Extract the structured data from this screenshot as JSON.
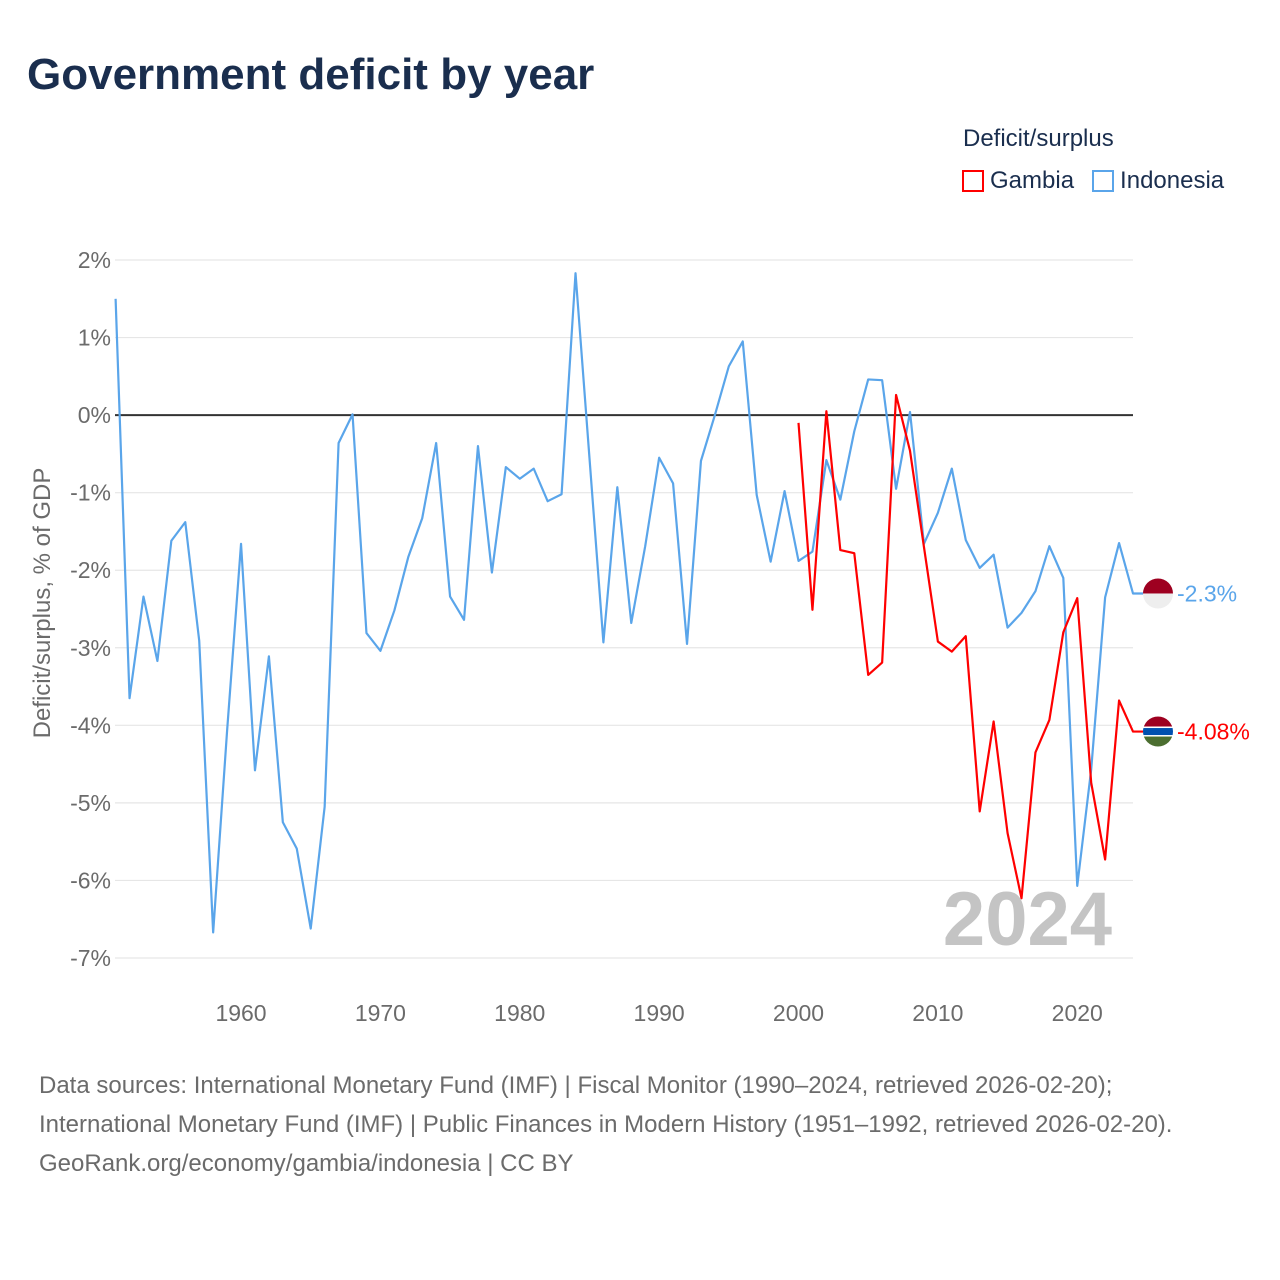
{
  "title": "Government deficit by year",
  "legend": {
    "title": "Deficit/surplus",
    "items": [
      {
        "label": "Gambia",
        "color": "#ff0000"
      },
      {
        "label": "Indonesia",
        "color": "#5aa5ea"
      }
    ]
  },
  "watermark_year": "2024",
  "sources": {
    "line1": "Data sources: International Monetary Fund (IMF) | Fiscal Monitor (1990–2024, retrieved 2026-02-20); International Monetary Fund (IMF) | Public Finances in Modern History (1951–1992, retrieved 2026-02-20).",
    "line2": "GeoRank.org/economy/gambia/indonesia | CC BY"
  },
  "chart_data": {
    "type": "line",
    "title": "Government deficit by year",
    "xlabel": "",
    "ylabel": "Deficit/surplus, % of GDP",
    "xlim": [
      1951,
      2024
    ],
    "ylim": [
      -7,
      2
    ],
    "xticks": [
      1960,
      1970,
      1980,
      1990,
      2000,
      2010,
      2020
    ],
    "yticks": [
      {
        "v": 2,
        "label": "2%"
      },
      {
        "v": 1,
        "label": "1%"
      },
      {
        "v": 0,
        "label": "0%"
      },
      {
        "v": -1,
        "label": "-1%"
      },
      {
        "v": -2,
        "label": "-2%"
      },
      {
        "v": -3,
        "label": "-3%"
      },
      {
        "v": -4,
        "label": "-4%"
      },
      {
        "v": -5,
        "label": "-5%"
      },
      {
        "v": -6,
        "label": "-6%"
      },
      {
        "v": -7,
        "label": "-7%"
      }
    ],
    "grid": true,
    "legend_position": "top-right",
    "series": [
      {
        "name": "Indonesia",
        "color": "#5aa5ea",
        "end_label": "-2.3%",
        "start_year": 1951,
        "values": [
          1.5,
          -3.65,
          -2.34,
          -3.17,
          -1.62,
          -1.38,
          -2.91,
          -6.67,
          -4.07,
          -1.66,
          -4.58,
          -3.11,
          -5.25,
          -5.59,
          -6.62,
          -5.05,
          -0.36,
          0.01,
          -2.81,
          -3.04,
          -2.52,
          -1.83,
          -1.33,
          -0.36,
          -2.34,
          -2.64,
          -0.4,
          -2.03,
          -0.67,
          -0.82,
          -0.69,
          -1.11,
          -1.02,
          1.83,
          -0.55,
          -2.93,
          -0.93,
          -2.68,
          -1.69,
          -0.55,
          -0.88,
          -2.95,
          -0.59,
          0.0,
          0.63,
          0.95,
          -1.03,
          -1.89,
          -0.98,
          -1.88,
          -1.76,
          -0.58,
          -1.09,
          -0.21,
          0.46,
          0.45,
          -0.95,
          0.04,
          -1.66,
          -1.26,
          -0.69,
          -1.61,
          -1.97,
          -1.8,
          -2.74,
          -2.55,
          -2.27,
          -1.69,
          -2.1,
          -6.07,
          -4.57,
          -2.35,
          -1.65,
          -2.3
        ]
      },
      {
        "name": "Gambia",
        "color": "#ff0000",
        "end_label": "-4.08%",
        "start_year": 2000,
        "values": [
          -0.1,
          -2.51,
          0.05,
          -1.74,
          -1.78,
          -3.35,
          -3.19,
          0.26,
          -0.46,
          -1.7,
          -2.92,
          -3.05,
          -2.85,
          -5.11,
          -3.95,
          -5.39,
          -6.23,
          -4.35,
          -3.93,
          -2.8,
          -2.36,
          -4.74,
          -5.73,
          -3.68,
          -4.08
        ]
      }
    ]
  }
}
